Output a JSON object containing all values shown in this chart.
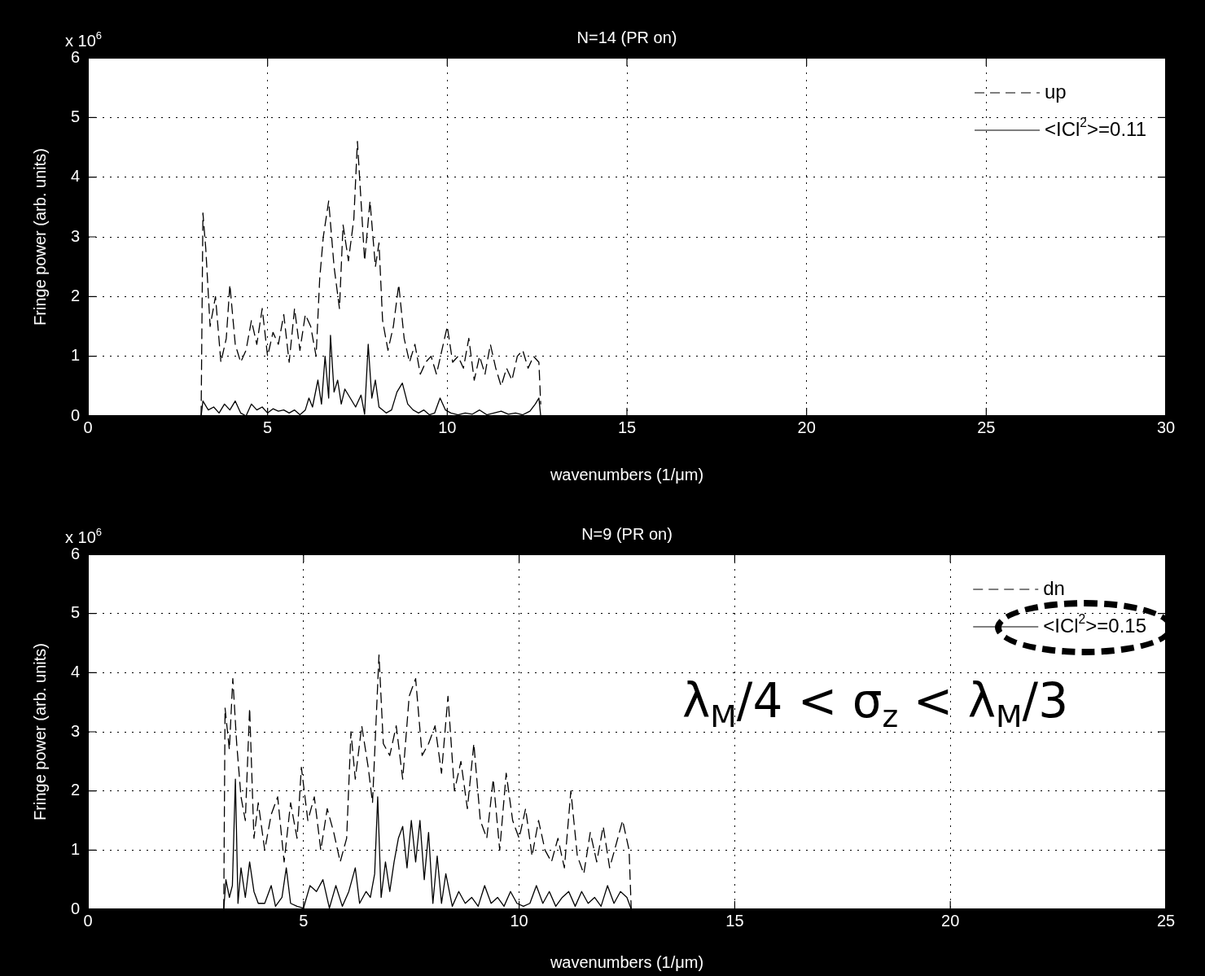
{
  "chart_data": [
    {
      "type": "line",
      "title": "N=14 (PR on)",
      "xlabel": "wavenumbers (1/μm)",
      "ylabel": "Fringe power (arb. units)",
      "annotations": [
        "x 10$^{6}$"
      ],
      "xlim": [
        0,
        30
      ],
      "xticks": [
        0,
        5,
        10,
        15,
        20,
        25,
        30
      ],
      "ylim": [
        0,
        6
      ],
      "yticks": [
        0,
        1,
        2,
        3,
        4,
        5,
        6
      ],
      "grid": true,
      "legend": "top right",
      "series": [
        {
          "name": "up",
          "color": "#000000",
          "line_style": "dashed",
          "x": [
            3.15,
            3.2,
            3.28,
            3.4,
            3.55,
            3.7,
            3.85,
            3.95,
            4.1,
            4.25,
            4.4,
            4.55,
            4.7,
            4.85,
            5.0,
            5.15,
            5.3,
            5.45,
            5.6,
            5.75,
            5.9,
            6.05,
            6.2,
            6.35,
            6.45,
            6.55,
            6.7,
            6.85,
            7.0,
            7.1,
            7.25,
            7.4,
            7.5,
            7.6,
            7.7,
            7.85,
            8.0,
            8.1,
            8.2,
            8.35,
            8.5,
            8.65,
            8.8,
            8.95,
            9.1,
            9.25,
            9.4,
            9.55,
            9.7,
            9.85,
            10.0,
            10.15,
            10.3,
            10.45,
            10.6,
            10.75,
            10.9,
            11.05,
            11.2,
            11.35,
            11.5,
            11.65,
            11.8,
            11.95,
            12.1,
            12.25,
            12.4,
            12.55,
            12.6
          ],
          "values": [
            0,
            3.4,
            2.8,
            1.5,
            2.0,
            0.9,
            1.3,
            2.2,
            1.2,
            0.9,
            1.1,
            1.6,
            1.2,
            1.8,
            1.0,
            1.4,
            1.2,
            1.7,
            0.9,
            1.8,
            1.1,
            1.7,
            1.5,
            1.0,
            2.3,
            3.0,
            3.6,
            2.5,
            1.8,
            3.2,
            2.6,
            3.3,
            4.6,
            3.6,
            2.6,
            3.6,
            2.5,
            2.9,
            1.6,
            1.1,
            1.5,
            2.2,
            1.3,
            0.9,
            1.2,
            0.7,
            0.9,
            1.0,
            0.7,
            1.1,
            1.5,
            0.9,
            1.0,
            0.8,
            1.3,
            0.6,
            1.0,
            0.7,
            1.2,
            0.8,
            0.5,
            0.8,
            0.6,
            1.0,
            1.1,
            0.8,
            1.0,
            0.9,
            0.2
          ]
        },
        {
          "name": "<ICl$^{2}$>=0.11",
          "color": "#000000",
          "line_style": "solid",
          "x": [
            3.15,
            3.2,
            3.35,
            3.5,
            3.65,
            3.8,
            3.95,
            4.1,
            4.25,
            4.4,
            4.55,
            4.7,
            4.85,
            5.0,
            5.15,
            5.3,
            5.45,
            5.6,
            5.75,
            5.9,
            6.05,
            6.15,
            6.25,
            6.4,
            6.5,
            6.6,
            6.7,
            6.75,
            6.85,
            6.95,
            7.05,
            7.15,
            7.3,
            7.45,
            7.6,
            7.7,
            7.8,
            7.9,
            8.0,
            8.1,
            8.3,
            8.45,
            8.6,
            8.75,
            8.9,
            9.05,
            9.2,
            9.35,
            9.5,
            9.65,
            9.8,
            9.95,
            10.1,
            10.3,
            10.5,
            10.7,
            10.9,
            11.1,
            11.3,
            11.5,
            11.7,
            11.9,
            12.1,
            12.3,
            12.45,
            12.55,
            12.6
          ],
          "values": [
            0,
            0.25,
            0.1,
            0.15,
            0.05,
            0.2,
            0.1,
            0.25,
            0.05,
            0.0,
            0.2,
            0.1,
            0.15,
            0.05,
            0.12,
            0.08,
            0.1,
            0.05,
            0.1,
            0.02,
            0.1,
            0.3,
            0.15,
            0.6,
            0.2,
            1.0,
            0.3,
            1.35,
            0.4,
            0.6,
            0.2,
            0.45,
            0.3,
            0.15,
            0.35,
            0.03,
            1.2,
            0.3,
            0.6,
            0.15,
            0.05,
            0.1,
            0.4,
            0.55,
            0.2,
            0.1,
            0.05,
            0.1,
            0.02,
            0.05,
            0.3,
            0.1,
            0.05,
            0.02,
            0.05,
            0.03,
            0.1,
            0.02,
            0.05,
            0.08,
            0.03,
            0.05,
            0.02,
            0.08,
            0.2,
            0.3,
            0.0
          ]
        }
      ]
    },
    {
      "type": "line",
      "title": "N=9 (PR on)",
      "xlabel": "wavenumbers (1/μm)",
      "ylabel": "Fringe power (arb. units)",
      "annotations": [
        "x 10$^{6}$",
        "λ$_{M}$/4 < σ$_{z}$ < λ$_{M}$/3"
      ],
      "xlim": [
        0,
        25
      ],
      "xticks": [
        0,
        5,
        10,
        15,
        20,
        25
      ],
      "ylim": [
        0,
        6
      ],
      "yticks": [
        0,
        1,
        2,
        3,
        4,
        5,
        6
      ],
      "grid": true,
      "legend": "top right",
      "series": [
        {
          "name": "dn",
          "color": "#000000",
          "line_style": "dashed",
          "x": [
            3.15,
            3.18,
            3.28,
            3.36,
            3.45,
            3.55,
            3.65,
            3.75,
            3.85,
            3.95,
            4.1,
            4.25,
            4.4,
            4.55,
            4.7,
            4.85,
            4.95,
            5.1,
            5.25,
            5.4,
            5.55,
            5.7,
            5.85,
            6.0,
            6.1,
            6.2,
            6.35,
            6.5,
            6.6,
            6.75,
            6.85,
            7.0,
            7.15,
            7.3,
            7.45,
            7.6,
            7.75,
            7.9,
            8.05,
            8.2,
            8.35,
            8.5,
            8.65,
            8.8,
            8.95,
            9.1,
            9.25,
            9.4,
            9.55,
            9.7,
            9.85,
            10.0,
            10.15,
            10.3,
            10.45,
            10.6,
            10.75,
            10.9,
            11.05,
            11.2,
            11.35,
            11.5,
            11.65,
            11.8,
            11.95,
            12.1,
            12.25,
            12.4,
            12.55,
            12.6
          ],
          "values": [
            0,
            3.4,
            2.7,
            3.9,
            2.8,
            1.9,
            1.5,
            3.4,
            1.2,
            1.8,
            1.0,
            1.6,
            1.9,
            0.8,
            1.8,
            1.2,
            2.4,
            1.5,
            1.9,
            1.0,
            1.7,
            1.3,
            0.8,
            1.2,
            3.0,
            2.2,
            3.1,
            2.4,
            1.8,
            4.3,
            2.8,
            2.6,
            3.1,
            2.2,
            3.6,
            3.9,
            2.6,
            2.8,
            3.1,
            2.3,
            3.6,
            2.0,
            2.5,
            1.7,
            2.8,
            1.5,
            1.2,
            2.2,
            1.0,
            2.3,
            1.5,
            1.2,
            1.7,
            0.9,
            1.5,
            1.0,
            0.8,
            1.2,
            0.7,
            2.0,
            0.9,
            0.6,
            1.3,
            0.8,
            1.4,
            0.7,
            1.1,
            1.5,
            1.0,
            0.0
          ]
        },
        {
          "name": "<ICl$^{2}$>=0.15",
          "color": "#000000",
          "line_style": "solid",
          "x": [
            3.15,
            3.2,
            3.28,
            3.35,
            3.42,
            3.48,
            3.55,
            3.65,
            3.75,
            3.85,
            3.95,
            4.1,
            4.25,
            4.35,
            4.5,
            4.6,
            4.7,
            4.85,
            5.0,
            5.15,
            5.3,
            5.45,
            5.6,
            5.75,
            5.9,
            6.05,
            6.2,
            6.3,
            6.45,
            6.55,
            6.65,
            6.72,
            6.8,
            6.9,
            7.0,
            7.1,
            7.2,
            7.3,
            7.4,
            7.5,
            7.6,
            7.7,
            7.8,
            7.9,
            8.0,
            8.1,
            8.2,
            8.3,
            8.45,
            8.6,
            8.75,
            8.9,
            9.05,
            9.2,
            9.35,
            9.5,
            9.65,
            9.8,
            9.95,
            10.1,
            10.25,
            10.4,
            10.55,
            10.7,
            10.85,
            11.0,
            11.15,
            11.3,
            11.45,
            11.6,
            11.75,
            11.9,
            12.05,
            12.2,
            12.35,
            12.5,
            12.6
          ],
          "values": [
            0,
            0.5,
            0.2,
            0.4,
            2.2,
            0.1,
            0.7,
            0.2,
            0.8,
            0.3,
            0.1,
            0.1,
            0.4,
            0.05,
            0.2,
            0.7,
            0.1,
            0.05,
            0.02,
            0.4,
            0.3,
            0.5,
            0.02,
            0.4,
            0.05,
            0.3,
            0.7,
            0.1,
            0.3,
            0.2,
            0.6,
            1.9,
            0.2,
            0.8,
            0.3,
            0.8,
            1.2,
            1.4,
            0.7,
            1.5,
            0.8,
            1.5,
            0.5,
            1.3,
            0.1,
            0.9,
            0.1,
            0.6,
            0.05,
            0.3,
            0.1,
            0.2,
            0.05,
            0.4,
            0.1,
            0.2,
            0.05,
            0.3,
            0.1,
            0.05,
            0.1,
            0.4,
            0.1,
            0.3,
            0.05,
            0.2,
            0.3,
            0.05,
            0.3,
            0.1,
            0.2,
            0.05,
            0.4,
            0.1,
            0.3,
            0.2,
            0.0
          ]
        }
      ]
    }
  ]
}
